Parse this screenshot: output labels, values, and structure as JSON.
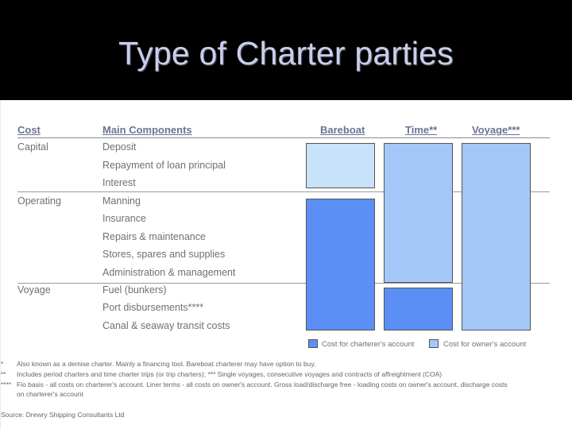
{
  "title": "Type of Charter parties",
  "colors": {
    "charterer": "#5b8ff5",
    "owner": "#a3c8f7",
    "owner_light": "#c8e2fb"
  },
  "table": {
    "headers": {
      "cost": "Cost",
      "components": "Main Components",
      "bareboat": "Bareboat",
      "time": "Time**",
      "voyage": "Voyage***"
    },
    "groups": [
      {
        "cost": "Capital",
        "components": [
          "Deposit",
          "Repayment of loan principal",
          "Interest"
        ]
      },
      {
        "cost": "Operating",
        "components": [
          "Manning",
          "Insurance",
          "Repairs & maintenance",
          "Stores, spares and supplies",
          "Administration & management"
        ]
      },
      {
        "cost": "Voyage",
        "components": [
          "Fuel (bunkers)",
          "Port disbursements****",
          "Canal & seaway transit costs"
        ]
      }
    ]
  },
  "legend": {
    "charterer": "Cost for charterer's account",
    "owner": "Cost for owner's account"
  },
  "footnotes": [
    {
      "mark": "*",
      "text": "Also known as a demise charter. Mainly a financing tool. Bareboat charterer  may have option to buy."
    },
    {
      "mark": "**",
      "text": "Includes period charters and time charter trips (or trip charters);    *** Single voyages, consecutive voyages and contracts of affreightment (COA)"
    },
    {
      "mark": "****",
      "text": "Fio basis - all costs on charterer's account.  Liner terms - all costs on owner's account.  Gross load/discharge free - loading costs on owner's account, discharge costs"
    },
    {
      "mark": "",
      "text": "on charterer's account"
    }
  ],
  "source": "Source: Drewry Shipping Consultants Ltd"
}
